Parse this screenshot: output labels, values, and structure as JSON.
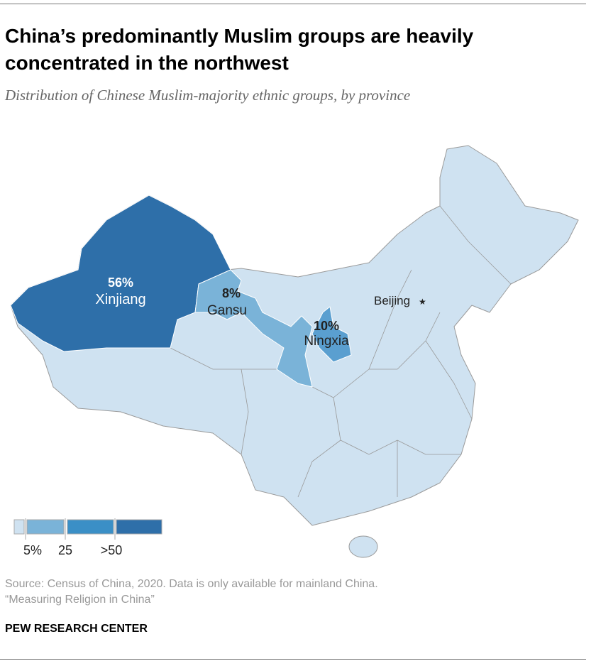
{
  "title": "China’s predominantly Muslim groups are heavily concentrated in the northwest",
  "subtitle": "Distribution of Chinese Muslim-majority ethnic groups, by province",
  "chart_data": {
    "type": "choropleth-map",
    "regions": [
      {
        "name": "Xinjiang",
        "value": 56,
        "label": "56%"
      },
      {
        "name": "Gansu",
        "value": 8,
        "label": "8%"
      },
      {
        "name": "Ningxia",
        "value": 10,
        "label": "10%"
      }
    ],
    "other_provinces": "less than 5%",
    "city_marker": {
      "name": "Beijing",
      "icon": "star-icon"
    },
    "legend": {
      "ticks": [
        "5%",
        "25",
        ">50"
      ],
      "colors": [
        "#cfe2f1",
        "#7ab3d8",
        "#3b8fc6",
        "#2e6fa9"
      ]
    }
  },
  "colors": {
    "border": "#9a9a9a",
    "ningxia": "#5a9fd0"
  },
  "source": {
    "line1": "Source: Census of China, 2020. Data is only available for mainland China.",
    "line2": "“Measuring Religion in China”"
  },
  "brand": "PEW RESEARCH CENTER"
}
